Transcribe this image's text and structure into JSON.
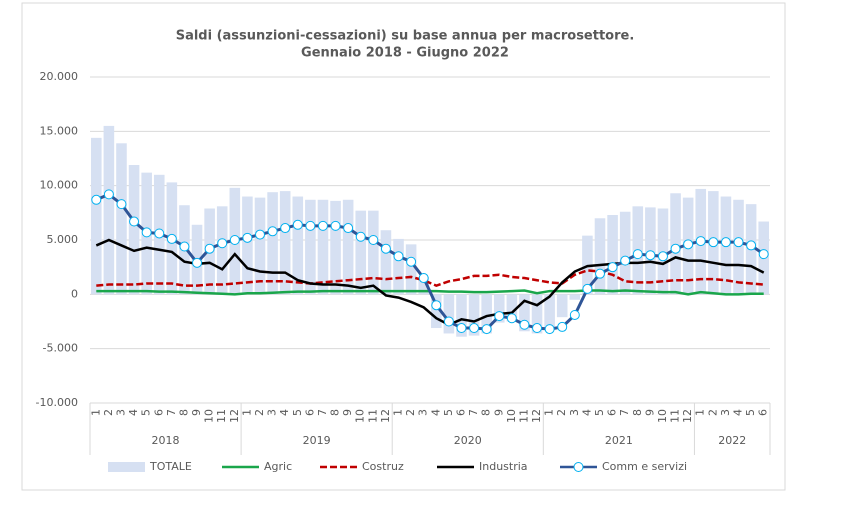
{
  "chart_data": {
    "type": "combo",
    "title": "Saldi (assunzioni-cessazioni)  su base annua per macrosettore.",
    "subtitle": "Gennaio 2018 - Giugno 2022",
    "categories": [
      "1",
      "2",
      "3",
      "4",
      "5",
      "6",
      "7",
      "8",
      "9",
      "10",
      "11",
      "12",
      "1",
      "2",
      "3",
      "4",
      "5",
      "6",
      "7",
      "8",
      "9",
      "10",
      "11",
      "12",
      "1",
      "2",
      "3",
      "4",
      "5",
      "6",
      "7",
      "8",
      "9",
      "10",
      "11",
      "12",
      "1",
      "2",
      "3",
      "4",
      "5",
      "6",
      "7",
      "8",
      "9",
      "10",
      "11",
      "12",
      "1",
      "2",
      "3",
      "4",
      "5",
      "6"
    ],
    "years": [
      "2018",
      "2019",
      "2020",
      "2021",
      "2022"
    ],
    "ylim": [
      -10000,
      20000
    ],
    "yticks": [
      {
        "value": -10000,
        "label": "-10.000"
      },
      {
        "value": -5000,
        "label": "-5.000"
      },
      0,
      {
        "value": 5000,
        "label": "5.000"
      },
      {
        "value": 10000,
        "label": "10.000"
      },
      {
        "value": 15000,
        "label": "15.000"
      },
      {
        "value": 20000,
        "label": "20.000"
      }
    ],
    "grid": true,
    "legend": "bottom",
    "series": [
      {
        "name": "TOTALE",
        "kind": "bar",
        "color": "#d6e0f2",
        "values": [
          14400,
          15500,
          13900,
          11900,
          11200,
          11000,
          10300,
          8200,
          6400,
          7900,
          8100,
          9800,
          9000,
          8900,
          9400,
          9500,
          9000,
          8700,
          8700,
          8600,
          8700,
          7700,
          7700,
          5900,
          5100,
          4600,
          1600,
          -3100,
          -3600,
          -3900,
          -3800,
          -3600,
          -2600,
          -2500,
          -3400,
          -3600,
          -3100,
          -2100,
          -500,
          5400,
          7000,
          7300,
          7600,
          8100,
          8000,
          7900,
          9300,
          8900,
          9700,
          9500,
          9000,
          8700,
          8300,
          6700
        ]
      },
      {
        "name": "Agric",
        "kind": "line",
        "color": "#1aa64b",
        "values": [
          300,
          300,
          300,
          300,
          300,
          250,
          250,
          200,
          150,
          100,
          50,
          0,
          100,
          100,
          150,
          200,
          250,
          250,
          300,
          300,
          300,
          300,
          300,
          300,
          300,
          300,
          300,
          300,
          250,
          250,
          200,
          200,
          250,
          300,
          350,
          100,
          300,
          300,
          300,
          350,
          350,
          300,
          350,
          300,
          250,
          200,
          200,
          0,
          200,
          100,
          0,
          0,
          50,
          50
        ]
      },
      {
        "name": "Costruz",
        "kind": "line",
        "dash": true,
        "color": "#c00000",
        "values": [
          800,
          900,
          900,
          900,
          1000,
          1000,
          1000,
          800,
          800,
          900,
          900,
          1000,
          1100,
          1200,
          1200,
          1200,
          1100,
          1000,
          1100,
          1200,
          1300,
          1400,
          1500,
          1400,
          1500,
          1600,
          1300,
          800,
          1200,
          1400,
          1700,
          1700,
          1800,
          1600,
          1500,
          1300,
          1100,
          1000,
          1800,
          2200,
          2100,
          1800,
          1200,
          1100,
          1100,
          1200,
          1300,
          1300,
          1400,
          1400,
          1300,
          1100,
          1000,
          900
        ]
      },
      {
        "name": "Industria",
        "kind": "line",
        "color": "#000000",
        "values": [
          4500,
          5000,
          4500,
          4000,
          4300,
          4100,
          3900,
          3000,
          2800,
          2900,
          2300,
          3700,
          2400,
          2100,
          2000,
          2000,
          1300,
          1000,
          900,
          900,
          800,
          600,
          800,
          -100,
          -300,
          -700,
          -1200,
          -2200,
          -2800,
          -2300,
          -2500,
          -2000,
          -1800,
          -1700,
          -600,
          -1000,
          -200,
          1100,
          2100,
          2600,
          2700,
          2800,
          2900,
          2900,
          3000,
          2800,
          3400,
          3100,
          3100,
          2900,
          2700,
          2700,
          2600,
          2000
        ]
      },
      {
        "name": "Comm e servizi",
        "kind": "line",
        "marker": true,
        "color": "#2f5597",
        "marker_color": "#00b0f0",
        "values": [
          8700,
          9200,
          8300,
          6700,
          5700,
          5600,
          5100,
          4400,
          2900,
          4200,
          4700,
          5000,
          5200,
          5500,
          5800,
          6100,
          6400,
          6300,
          6300,
          6300,
          6100,
          5300,
          5000,
          4200,
          3500,
          3000,
          1500,
          -1000,
          -2500,
          -3100,
          -3100,
          -3200,
          -2000,
          -2200,
          -2800,
          -3100,
          -3200,
          -3000,
          -1900,
          500,
          1900,
          2500,
          3100,
          3700,
          3600,
          3500,
          4200,
          4600,
          4900,
          4800,
          4800,
          4800,
          4500,
          3700
        ]
      }
    ]
  }
}
